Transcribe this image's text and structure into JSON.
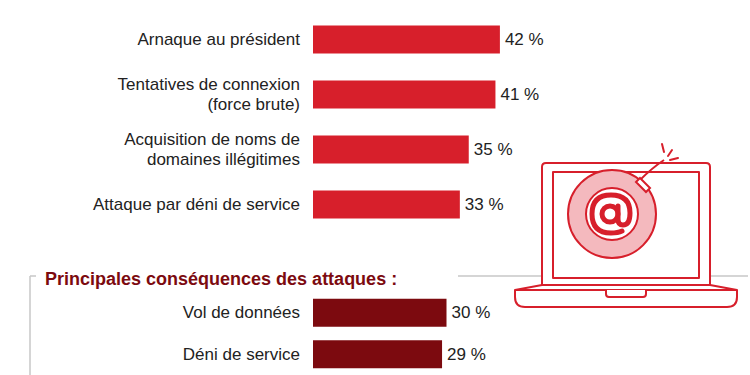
{
  "chart_data": [
    {
      "type": "bar",
      "orientation": "horizontal",
      "categories": [
        "Arnaque au président",
        "Tentatives de connexion\n(force brute)",
        "Acquisition de noms de\ndomaines illégitimes",
        "Attaque par déni de service"
      ],
      "values": [
        42,
        41,
        35,
        33
      ],
      "value_labels": [
        "42 %",
        "41 %",
        "35 %",
        "33 %"
      ],
      "color": "#d71f2b",
      "xlim": [
        0,
        60
      ],
      "data_labels": true,
      "tick_labels": "y",
      "grid": false
    },
    {
      "type": "bar",
      "orientation": "horizontal",
      "title": "Principales conséquences des attaques :",
      "categories": [
        "Vol de données",
        "Déni de service"
      ],
      "values": [
        30,
        29
      ],
      "value_labels": [
        "30 %",
        "29 %"
      ],
      "color": "#7c0a0f",
      "xlim": [
        0,
        60
      ],
      "data_labels": true,
      "tick_labels": "y",
      "grid": false
    }
  ]
}
